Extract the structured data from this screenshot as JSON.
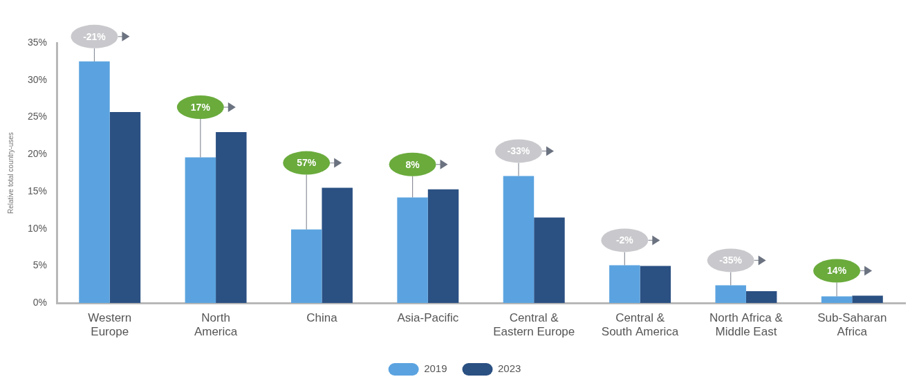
{
  "chart_data": {
    "type": "bar",
    "ylabel": "Relative total country-uses",
    "categories": [
      "Western\nEurope",
      "North\nAmerica",
      "China",
      "Asia-Pacific",
      "Central &\nEastern Europe",
      "Central &\nSouth America",
      "North Africa &\nMiddle East",
      "Sub-Saharan\nAfrica"
    ],
    "series": [
      {
        "name": "2019",
        "color": "#5ba3e0",
        "values": [
          32.5,
          19.6,
          9.9,
          14.2,
          17.1,
          5.1,
          2.4,
          0.9
        ]
      },
      {
        "name": "2023",
        "color": "#2b5082",
        "values": [
          25.7,
          23.0,
          15.5,
          15.3,
          11.5,
          5.0,
          1.6,
          1.0
        ]
      }
    ],
    "annotations": {
      "values": [
        -21,
        17,
        57,
        8,
        -33,
        -2,
        -35,
        14
      ],
      "value_labels": [
        "-21%",
        "17%",
        "57%",
        "8%",
        "-33%",
        "-2%",
        "-35%",
        "14%"
      ],
      "colors": [
        "#c9c9cd",
        "#6aab3c",
        "#6aab3c",
        "#6aab3c",
        "#c9c9cd",
        "#c9c9cd",
        "#c9c9cd",
        "#6aab3c"
      ]
    },
    "ylim": [
      0,
      35
    ],
    "yticks": [
      {
        "value": 0,
        "label": "0%"
      },
      {
        "value": 5,
        "label": "5%"
      },
      {
        "value": 10,
        "label": "10%"
      },
      {
        "value": 15,
        "label": "15%"
      },
      {
        "value": 20,
        "label": "20%"
      },
      {
        "value": 25,
        "label": "25%"
      },
      {
        "value": 30,
        "label": "30%"
      },
      {
        "value": 35,
        "label": "35%"
      }
    ],
    "grid": false,
    "legend": "bottom"
  }
}
